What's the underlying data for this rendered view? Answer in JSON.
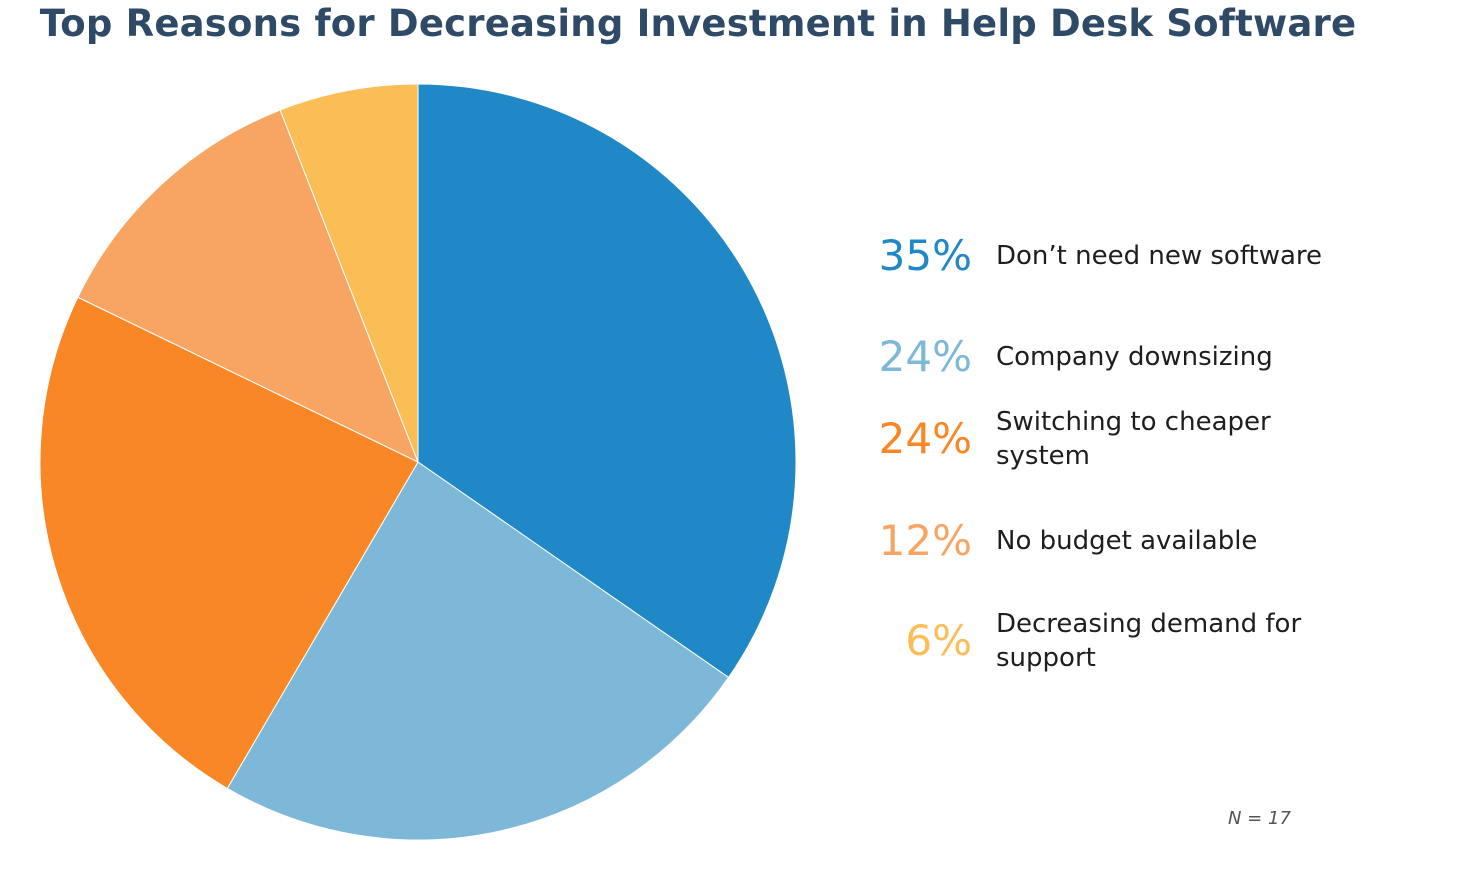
{
  "chart_data": {
    "type": "pie",
    "title": "Top Reasons for Decreasing Investment in Help Desk Software",
    "slices": [
      {
        "label": "Don’t need new software",
        "value": 35,
        "display": "35%",
        "color": "#2088c7"
      },
      {
        "label": "Company downsizing",
        "value": 24,
        "display": "24%",
        "color": "#7db8d9"
      },
      {
        "label": "Switching to cheaper system",
        "value": 24,
        "display": "24%",
        "color": "#f98725"
      },
      {
        "label": "No budget available",
        "value": 12,
        "display": "12%",
        "color": "#f8a563"
      },
      {
        "label": "Decreasing demand for support",
        "value": 6,
        "display": "6%",
        "color": "#fbbd56"
      }
    ],
    "start_angle": "12 o'clock",
    "direction": "clockwise",
    "legend_position": "right",
    "note": "N = 17"
  }
}
